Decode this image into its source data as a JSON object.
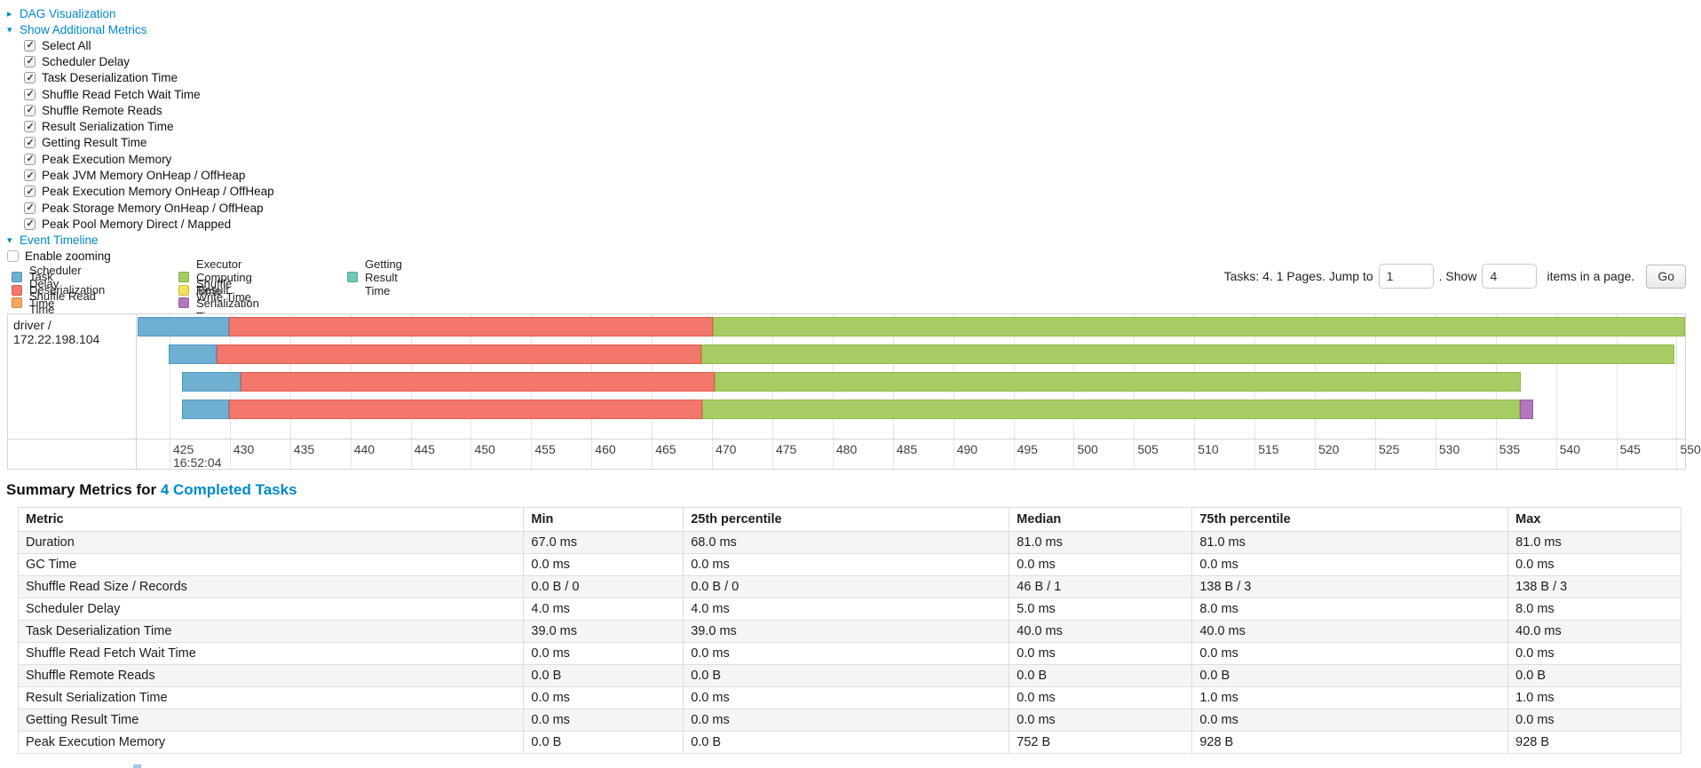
{
  "accordion": {
    "dag": {
      "arrow": "▸",
      "label": "DAG Visualization"
    },
    "metrics": {
      "arrow": "▾",
      "label": "Show Additional Metrics"
    },
    "metric_checkboxes": [
      {
        "label": "Select All",
        "checked": true
      },
      {
        "label": "Scheduler Delay",
        "checked": true
      },
      {
        "label": "Task Deserialization Time",
        "checked": true
      },
      {
        "label": "Shuffle Read Fetch Wait Time",
        "checked": true
      },
      {
        "label": "Shuffle Remote Reads",
        "checked": true
      },
      {
        "label": "Result Serialization Time",
        "checked": true
      },
      {
        "label": "Getting Result Time",
        "checked": true
      },
      {
        "label": "Peak Execution Memory",
        "checked": true
      },
      {
        "label": "Peak JVM Memory OnHeap / OffHeap",
        "checked": true
      },
      {
        "label": "Peak Execution Memory OnHeap / OffHeap",
        "checked": true
      },
      {
        "label": "Peak Storage Memory OnHeap / OffHeap",
        "checked": true
      },
      {
        "label": "Peak Pool Memory Direct / Mapped",
        "checked": true
      }
    ],
    "event_timeline": {
      "arrow": "▾",
      "label": "Event Timeline"
    },
    "enable_zooming": {
      "label": "Enable zooming",
      "checked": false
    }
  },
  "pagination": {
    "prefix": "Tasks: 4. 1 Pages. Jump to",
    "jump_value": "1",
    "mid": ". Show",
    "show_value": "4",
    "suffix": "items in a page.",
    "go_label": "Go"
  },
  "chart_data": {
    "type": "timeline",
    "group_label": "driver / 172.22.198.104",
    "axis": {
      "start": 422.35,
      "end": 550.7,
      "unit": "ms",
      "major_label": "16:52:04",
      "major_at": 425
    },
    "ticks": [
      425,
      430,
      435,
      440,
      445,
      450,
      455,
      460,
      465,
      470,
      475,
      480,
      485,
      490,
      495,
      500,
      505,
      510,
      515,
      520,
      525,
      530,
      535,
      540,
      545,
      550
    ],
    "colors": {
      "scheduler_delay": {
        "fill": "#6FB0D2",
        "border": "#4F97BE"
      },
      "task_deserialization": {
        "fill": "#F4776C",
        "border": "#E05A50"
      },
      "shuffle_read": {
        "fill": "#F8A65D",
        "border": "#E8883D"
      },
      "executor_computing": {
        "fill": "#A6CC63",
        "border": "#8DBA47"
      },
      "shuffle_write": {
        "fill": "#F2E35B",
        "border": "#DACB3E"
      },
      "result_serialization": {
        "fill": "#B377BF",
        "border": "#9C59A8"
      },
      "getting_result": {
        "fill": "#6FC9B4",
        "border": "#52B199"
      }
    },
    "legend": {
      "columns": [
        [
          {
            "key": "scheduler_delay",
            "label": "Scheduler Delay"
          },
          {
            "key": "task_deserialization",
            "label": "Task Deserialization Time"
          },
          {
            "key": "shuffle_read",
            "label": "Shuffle Read Time"
          }
        ],
        [
          {
            "key": "executor_computing",
            "label": "Executor Computing Time"
          },
          {
            "key": "shuffle_write",
            "label": "Shuffle Write Time"
          },
          {
            "key": "result_serialization",
            "label": "Result Serialization Time"
          }
        ],
        [
          {
            "key": "getting_result",
            "label": "Getting Result Time"
          }
        ]
      ]
    },
    "tasks": [
      {
        "segments": [
          {
            "type": "scheduler_delay",
            "start": 422.35,
            "end": 429.9
          },
          {
            "type": "task_deserialization",
            "start": 429.9,
            "end": 470.1
          },
          {
            "type": "executor_computing",
            "start": 470.1,
            "end": 550.7
          }
        ]
      },
      {
        "segments": [
          {
            "type": "scheduler_delay",
            "start": 424.9,
            "end": 428.9
          },
          {
            "type": "task_deserialization",
            "start": 428.9,
            "end": 469.1
          },
          {
            "type": "executor_computing",
            "start": 469.1,
            "end": 549.8
          }
        ]
      },
      {
        "segments": [
          {
            "type": "scheduler_delay",
            "start": 426.0,
            "end": 430.9
          },
          {
            "type": "task_deserialization",
            "start": 430.9,
            "end": 470.2
          },
          {
            "type": "executor_computing",
            "start": 470.2,
            "end": 537.1
          }
        ]
      },
      {
        "segments": [
          {
            "type": "scheduler_delay",
            "start": 426.0,
            "end": 429.9
          },
          {
            "type": "task_deserialization",
            "start": 429.9,
            "end": 469.2
          },
          {
            "type": "executor_computing",
            "start": 469.2,
            "end": 537.0
          },
          {
            "type": "result_serialization",
            "start": 537.0,
            "end": 538.1
          }
        ]
      }
    ]
  },
  "summary": {
    "title_prefix": "Summary Metrics for ",
    "title_link": "4 Completed Tasks",
    "columns": [
      "Metric",
      "Min",
      "25th percentile",
      "Median",
      "75th percentile",
      "Max"
    ],
    "col_widths": [
      "30.4%",
      "9.6%",
      "19.6%",
      "11.0%",
      "19.0%",
      "10.4%"
    ],
    "rows": [
      [
        "Duration",
        "67.0 ms",
        "68.0 ms",
        "81.0 ms",
        "81.0 ms",
        "81.0 ms"
      ],
      [
        "GC Time",
        "0.0 ms",
        "0.0 ms",
        "0.0 ms",
        "0.0 ms",
        "0.0 ms"
      ],
      [
        "Shuffle Read Size / Records",
        "0.0 B / 0",
        "0.0 B / 0",
        "46 B / 1",
        "138 B / 3",
        "138 B / 3"
      ],
      [
        "Scheduler Delay",
        "4.0 ms",
        "4.0 ms",
        "5.0 ms",
        "8.0 ms",
        "8.0 ms"
      ],
      [
        "Task Deserialization Time",
        "39.0 ms",
        "39.0 ms",
        "40.0 ms",
        "40.0 ms",
        "40.0 ms"
      ],
      [
        "Shuffle Read Fetch Wait Time",
        "0.0 ms",
        "0.0 ms",
        "0.0 ms",
        "0.0 ms",
        "0.0 ms"
      ],
      [
        "Shuffle Remote Reads",
        "0.0 B",
        "0.0 B",
        "0.0 B",
        "0.0 B",
        "0.0 B"
      ],
      [
        "Result Serialization Time",
        "0.0 ms",
        "0.0 ms",
        "0.0 ms",
        "1.0 ms",
        "1.0 ms"
      ],
      [
        "Getting Result Time",
        "0.0 ms",
        "0.0 ms",
        "0.0 ms",
        "0.0 ms",
        "0.0 ms"
      ],
      [
        "Peak Execution Memory",
        "0.0 B",
        "0.0 B",
        "752 B",
        "928 B",
        "928 B"
      ]
    ]
  }
}
